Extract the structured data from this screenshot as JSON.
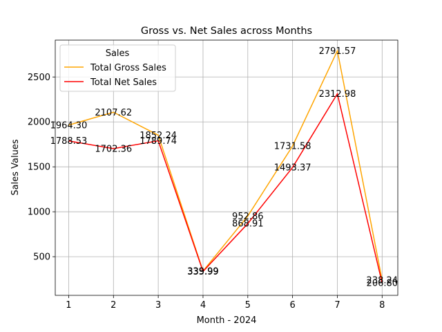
{
  "chart_data": {
    "type": "line",
    "title": "Gross vs. Net Sales across Months",
    "xlabel": "Month - 2024",
    "ylabel": "Sales Values",
    "x": [
      1,
      2,
      3,
      4,
      5,
      6,
      7,
      8
    ],
    "x_ticks": [
      "1",
      "2",
      "3",
      "4",
      "5",
      "6",
      "7",
      "8"
    ],
    "y_ticks": [
      "500",
      "1000",
      "1500",
      "2000",
      "2500"
    ],
    "xlim": [
      0.7,
      8.35
    ],
    "ylim": [
      70,
      2910
    ],
    "grid": true,
    "legend": {
      "title": "Sales",
      "position": "upper-left"
    },
    "series": [
      {
        "name": "Total Gross Sales",
        "color": "#ffa500",
        "values": [
          1964.3,
          2107.62,
          1852.24,
          339.99,
          952.86,
          1731.58,
          2791.57,
          238.24
        ],
        "labels": [
          "1964.30",
          "2107.62",
          "1852.24",
          "339.99",
          "952.86",
          "1731.58",
          "2791.57",
          "238.24"
        ]
      },
      {
        "name": "Total Net Sales",
        "color": "#ff0000",
        "values": [
          1788.53,
          1702.36,
          1789.74,
          335.99,
          868.91,
          1493.37,
          2312.98,
          206.8
        ],
        "labels": [
          "1788.53",
          "1702.36",
          "1789.74",
          "335.99",
          "868.91",
          "1493.37",
          "2312.98",
          "206.80"
        ]
      }
    ]
  }
}
